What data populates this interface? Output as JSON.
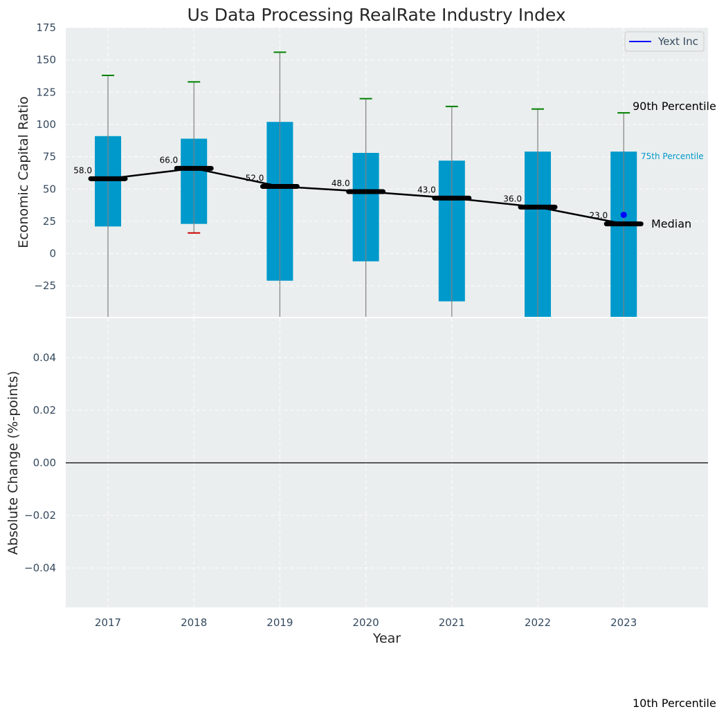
{
  "chart_data": {
    "type": "bar",
    "title": "Us Data Processing RealRate Industry Index",
    "categories": [
      "2017",
      "2018",
      "2019",
      "2020",
      "2021",
      "2022",
      "2023"
    ],
    "xlabel": "Year",
    "top_panel": {
      "ylabel": "Economic Capital Ratio",
      "ylim": [
        -49,
        175
      ],
      "yticks": [
        -25,
        0,
        25,
        50,
        75,
        100,
        125,
        150,
        175
      ],
      "p75": [
        91,
        89,
        102,
        78,
        72,
        79,
        79
      ],
      "p25": [
        21,
        23,
        -21,
        -6,
        -37,
        -49,
        -49
      ],
      "p90": [
        138,
        133,
        156,
        120,
        114,
        112,
        109
      ],
      "p10": [
        -49,
        16,
        -49,
        -49,
        -49,
        -49,
        -49
      ],
      "median": [
        58,
        66,
        52,
        48,
        43,
        36,
        23
      ],
      "median_labels": [
        "58.0",
        "66.0",
        "52.0",
        "48.0",
        "43.0",
        "36.0",
        "23.0"
      ],
      "company": {
        "name": "Yext Inc",
        "points": [
          {
            "x": "2023",
            "y": 30
          }
        ]
      },
      "annotations": {
        "p90": "90th Percentile",
        "p75": "75th Percentile",
        "median": "Median",
        "p10": "10th Percentile"
      },
      "legend": "top-right"
    },
    "bottom_panel": {
      "ylabel": "Absolute Change (%-points)",
      "ylim": [
        -0.055,
        0.055
      ],
      "yticks": [
        -0.04,
        -0.02,
        0.0,
        0.02,
        0.04
      ],
      "ytick_labels": [
        "−0.04",
        "−0.02",
        "0.00",
        "0.02",
        "0.04"
      ],
      "zero_line": true
    },
    "grid": true,
    "colors": {
      "bar": "#0099cc",
      "whisker_top": "#008000",
      "whisker_bottom": "#cc0000",
      "whisker_line": "#808080",
      "median": "#000000",
      "company": "#0000ff",
      "plot_bg": "#eaeeee",
      "p75_label": "#0099cc"
    }
  }
}
